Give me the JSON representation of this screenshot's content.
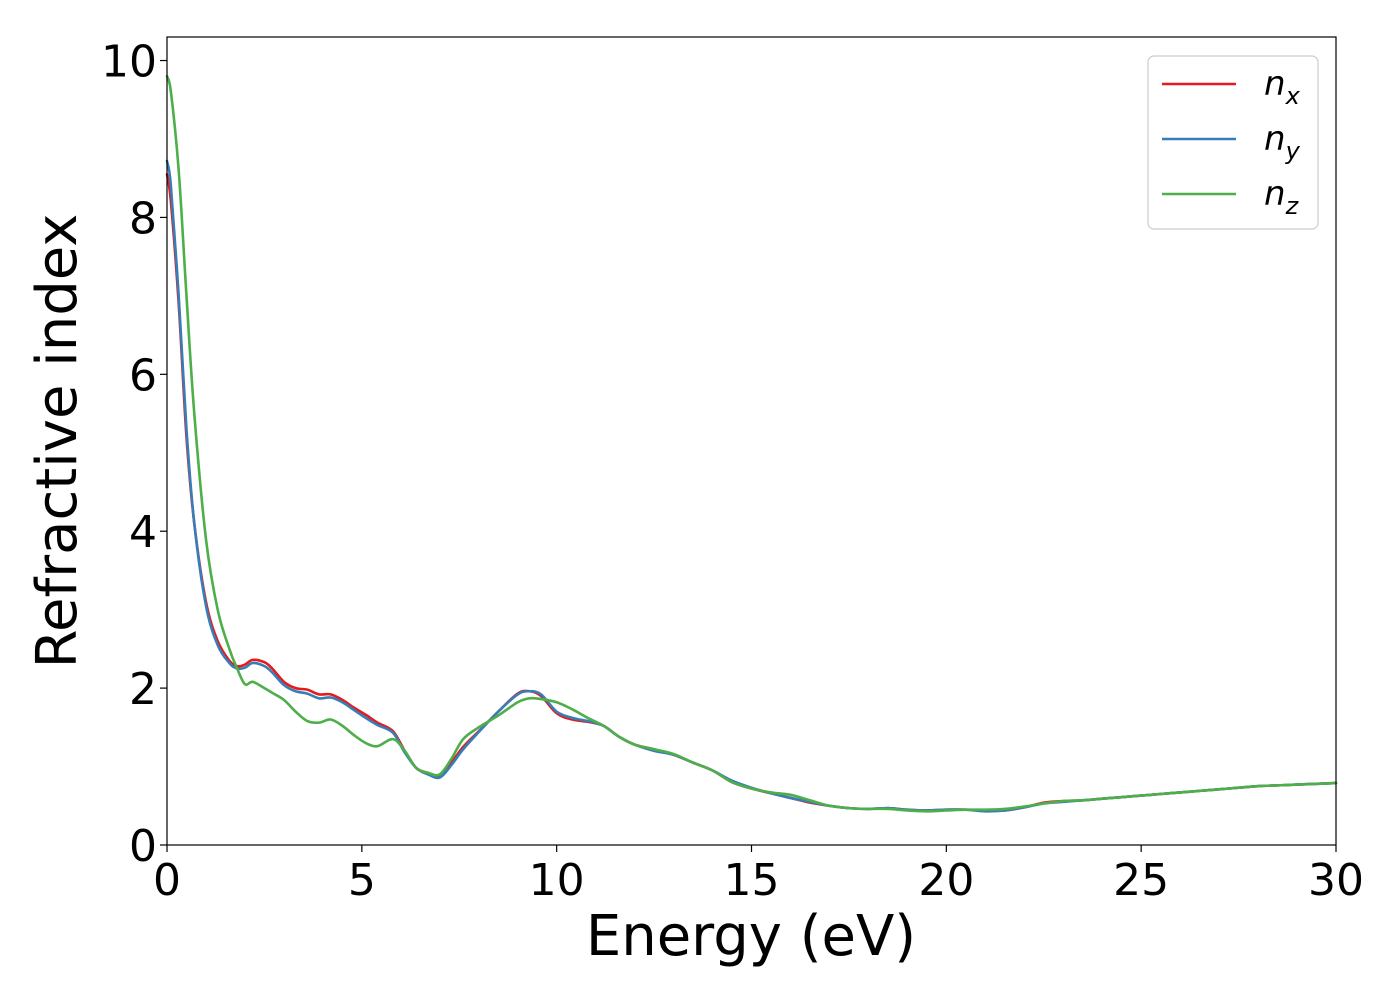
{
  "chart_data": {
    "type": "line",
    "xlabel": "Energy (eV)",
    "ylabel": "Refractive index",
    "xlim": [
      0,
      30
    ],
    "ylim": [
      0,
      10.3
    ],
    "xticks": [
      "0",
      "5",
      "10",
      "15",
      "20",
      "25",
      "30"
    ],
    "yticks": [
      "0",
      "2",
      "4",
      "6",
      "8",
      "10"
    ],
    "grid": false,
    "legend_position": "top-right",
    "series": [
      {
        "name": "n",
        "subscript": "x",
        "color": "#e41a1c",
        "x": [
          0,
          0.1,
          0.3,
          0.5,
          0.7,
          1.0,
          1.3,
          1.6,
          1.8,
          2.0,
          2.2,
          2.5,
          2.7,
          3.0,
          3.3,
          3.6,
          3.9,
          4.2,
          4.5,
          4.8,
          5.1,
          5.4,
          5.8,
          6.1,
          6.4,
          6.7,
          7.0,
          7.3,
          7.6,
          8.0,
          8.5,
          9.0,
          9.3,
          9.6,
          10.0,
          10.4,
          10.8,
          11.2,
          11.6,
          12.0,
          12.5,
          13.0,
          13.5,
          14.0,
          14.5,
          15.0,
          15.5,
          16.0,
          16.5,
          17.0,
          17.5,
          18.0,
          18.5,
          19.0,
          19.5,
          20.0,
          20.5,
          21.0,
          21.5,
          22.0,
          22.5,
          23.0,
          23.5,
          24.0,
          24.5,
          25.0,
          25.5,
          26.0,
          26.5,
          27.0,
          27.5,
          28.0,
          28.5,
          29.0,
          29.5,
          30.0
        ],
        "y": [
          8.55,
          8.2,
          6.9,
          5.2,
          4.1,
          3.1,
          2.6,
          2.35,
          2.28,
          2.3,
          2.36,
          2.33,
          2.25,
          2.08,
          2.0,
          1.98,
          1.92,
          1.92,
          1.85,
          1.75,
          1.66,
          1.56,
          1.45,
          1.2,
          0.98,
          0.92,
          0.88,
          1.05,
          1.25,
          1.45,
          1.7,
          1.93,
          1.96,
          1.9,
          1.68,
          1.6,
          1.57,
          1.52,
          1.38,
          1.28,
          1.22,
          1.15,
          1.05,
          0.95,
          0.8,
          0.72,
          0.66,
          0.6,
          0.54,
          0.5,
          0.47,
          0.46,
          0.47,
          0.45,
          0.44,
          0.45,
          0.45,
          0.44,
          0.44,
          0.48,
          0.54,
          0.56,
          0.57,
          0.59,
          0.61,
          0.63,
          0.65,
          0.67,
          0.69,
          0.71,
          0.73,
          0.75,
          0.76,
          0.77,
          0.78,
          0.79
        ]
      },
      {
        "name": "n",
        "subscript": "y",
        "color": "#377eb8",
        "x": [
          0,
          0.1,
          0.3,
          0.5,
          0.7,
          1.0,
          1.3,
          1.6,
          1.8,
          2.0,
          2.2,
          2.5,
          2.7,
          3.0,
          3.3,
          3.6,
          3.9,
          4.2,
          4.5,
          4.8,
          5.1,
          5.4,
          5.8,
          6.1,
          6.4,
          6.7,
          7.0,
          7.3,
          7.6,
          8.0,
          8.5,
          9.0,
          9.3,
          9.6,
          10.0,
          10.4,
          10.8,
          11.2,
          11.6,
          12.0,
          12.5,
          13.0,
          13.5,
          14.0,
          14.5,
          15.0,
          15.5,
          16.0,
          16.5,
          17.0,
          17.5,
          18.0,
          18.5,
          19.0,
          19.5,
          20.0,
          20.5,
          21.0,
          21.5,
          22.0,
          22.5,
          23.0,
          23.5,
          24.0,
          24.5,
          25.0,
          25.5,
          26.0,
          26.5,
          27.0,
          27.5,
          28.0,
          28.5,
          29.0,
          29.5,
          30.0
        ],
        "y": [
          8.72,
          8.4,
          7.0,
          5.3,
          4.1,
          3.05,
          2.55,
          2.32,
          2.25,
          2.26,
          2.32,
          2.28,
          2.2,
          2.04,
          1.96,
          1.93,
          1.87,
          1.88,
          1.82,
          1.72,
          1.62,
          1.53,
          1.43,
          1.18,
          0.98,
          0.9,
          0.86,
          1.02,
          1.22,
          1.44,
          1.7,
          1.92,
          1.96,
          1.92,
          1.7,
          1.62,
          1.58,
          1.52,
          1.38,
          1.28,
          1.2,
          1.15,
          1.05,
          0.95,
          0.82,
          0.73,
          0.66,
          0.6,
          0.55,
          0.5,
          0.47,
          0.46,
          0.47,
          0.45,
          0.44,
          0.45,
          0.45,
          0.43,
          0.44,
          0.48,
          0.53,
          0.55,
          0.57,
          0.59,
          0.61,
          0.63,
          0.65,
          0.67,
          0.69,
          0.71,
          0.73,
          0.75,
          0.76,
          0.77,
          0.78,
          0.79
        ]
      },
      {
        "name": "n",
        "subscript": "z",
        "color": "#4daf4a",
        "x": [
          0,
          0.1,
          0.3,
          0.5,
          0.7,
          1.0,
          1.3,
          1.6,
          1.8,
          2.0,
          2.2,
          2.5,
          2.7,
          3.0,
          3.3,
          3.6,
          3.9,
          4.2,
          4.5,
          4.8,
          5.1,
          5.4,
          5.8,
          6.1,
          6.4,
          6.7,
          7.0,
          7.3,
          7.6,
          8.0,
          8.5,
          9.0,
          9.3,
          9.6,
          10.0,
          10.4,
          10.8,
          11.2,
          11.6,
          12.0,
          12.5,
          13.0,
          13.5,
          14.0,
          14.5,
          15.0,
          15.5,
          16.0,
          16.5,
          17.0,
          17.5,
          18.0,
          18.5,
          19.0,
          19.5,
          20.0,
          20.5,
          21.0,
          21.5,
          22.0,
          22.5,
          23.0,
          23.5,
          24.0,
          24.5,
          25.0,
          25.5,
          26.0,
          26.5,
          27.0,
          27.5,
          28.0,
          28.5,
          29.0,
          29.5,
          30.0
        ],
        "y": [
          9.8,
          9.6,
          8.6,
          7.0,
          5.5,
          3.9,
          3.0,
          2.5,
          2.25,
          2.05,
          2.08,
          2.0,
          1.94,
          1.85,
          1.7,
          1.58,
          1.56,
          1.6,
          1.52,
          1.4,
          1.3,
          1.26,
          1.35,
          1.2,
          0.98,
          0.92,
          0.9,
          1.1,
          1.35,
          1.5,
          1.65,
          1.82,
          1.87,
          1.86,
          1.82,
          1.73,
          1.62,
          1.52,
          1.38,
          1.28,
          1.22,
          1.16,
          1.05,
          0.95,
          0.8,
          0.72,
          0.67,
          0.64,
          0.57,
          0.5,
          0.47,
          0.46,
          0.46,
          0.44,
          0.43,
          0.44,
          0.45,
          0.45,
          0.46,
          0.49,
          0.53,
          0.56,
          0.57,
          0.59,
          0.61,
          0.63,
          0.65,
          0.67,
          0.69,
          0.71,
          0.73,
          0.75,
          0.76,
          0.77,
          0.78,
          0.79
        ]
      }
    ]
  }
}
